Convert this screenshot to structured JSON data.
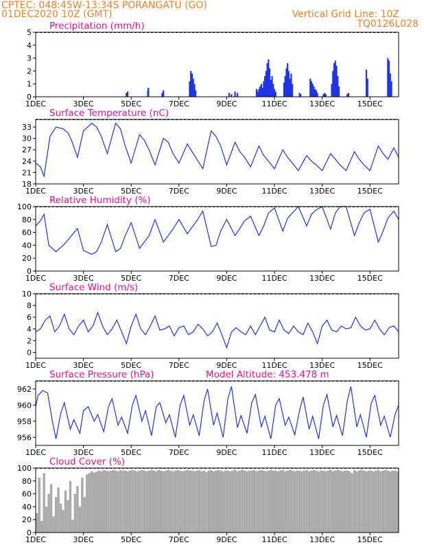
{
  "header": {
    "station": "CPTEC:  048:45W-13:34S  PORANGATU (GO)",
    "run": "01DEC2020 10Z (GMT)",
    "grid_note": "Vertical Grid Line: 10Z",
    "model_code": "TQ0126L028"
  },
  "colors": {
    "header": "#e8822a",
    "title": "#e0148c",
    "line": "#2233dd",
    "bar": "#1f35e6",
    "cloud": "#aaaaaa"
  },
  "chart_data": [
    {
      "type": "bar",
      "title": "Precipitation (mm/h)",
      "ylim": [
        0,
        5
      ],
      "yticks": [
        0,
        1,
        2,
        3,
        4,
        5
      ],
      "xticks": [
        "1DEC",
        "3DEC",
        "5DEC",
        "7DEC",
        "9DEC",
        "11DEC",
        "13DEC",
        "15DEC"
      ],
      "xticks_day": [
        1,
        3,
        5,
        7,
        9,
        11,
        13,
        15
      ],
      "xlim_day": [
        1,
        16.2
      ],
      "x_day": [
        4.8,
        4.85,
        5.7,
        5.72,
        6.3,
        6.35,
        7.45,
        7.5,
        7.55,
        7.6,
        7.65,
        7.7,
        9.1,
        9.2,
        9.35,
        9.45,
        10.25,
        10.3,
        10.35,
        10.4,
        10.45,
        10.5,
        10.55,
        10.6,
        10.65,
        10.7,
        10.75,
        10.8,
        10.85,
        10.9,
        10.95,
        11.0,
        11.05,
        11.4,
        11.45,
        11.5,
        11.55,
        11.6,
        11.65,
        11.7,
        11.75,
        12.05,
        12.1,
        12.5,
        12.55,
        12.6,
        12.65,
        12.7,
        12.75,
        12.8,
        13.05,
        13.1,
        13.15,
        13.4,
        13.45,
        13.5,
        13.55,
        13.6,
        13.65,
        13.7,
        14.05,
        14.1,
        14.85,
        14.9,
        15.75,
        15.8,
        15.85,
        15.9
      ],
      "values": [
        0.3,
        0.4,
        0.5,
        0.7,
        0.3,
        0.5,
        1.2,
        2.0,
        1.8,
        1.4,
        1.0,
        0.5,
        0.3,
        0.2,
        0.4,
        0.3,
        0.6,
        0.4,
        0.6,
        0.8,
        1.0,
        0.7,
        1.2,
        1.6,
        2.0,
        2.6,
        2.9,
        2.2,
        1.3,
        1.6,
        1.0,
        0.6,
        0.4,
        1.1,
        1.6,
        2.2,
        2.6,
        2.0,
        1.4,
        1.8,
        1.0,
        0.3,
        0.2,
        1.4,
        1.2,
        1.0,
        0.8,
        0.6,
        0.5,
        0.3,
        0.2,
        0.3,
        0.2,
        1.0,
        2.0,
        2.6,
        2.8,
        2.4,
        1.6,
        0.8,
        0.2,
        0.3,
        2.1,
        1.4,
        3.0,
        2.8,
        1.8,
        1.2
      ],
      "frame": {
        "x0": 52,
        "x1": 581,
        "y0": 47,
        "y1": 141
      }
    },
    {
      "type": "line",
      "title": "Surface Temperature (nC)",
      "ylim": [
        18,
        35
      ],
      "yticks": [
        18,
        21,
        24,
        27,
        30,
        33
      ],
      "xticks": [
        "1DEC",
        "3DEC",
        "5DEC",
        "7DEC",
        "9DEC",
        "11DEC",
        "13DEC",
        "15DEC"
      ],
      "xticks_day": [
        1,
        3,
        5,
        7,
        9,
        11,
        13,
        15
      ],
      "xlim_day": [
        1,
        16.2
      ],
      "x_day": [
        1.0,
        1.2,
        1.35,
        1.6,
        1.85,
        2.15,
        2.35,
        2.5,
        2.75,
        3.0,
        3.35,
        3.55,
        3.75,
        4.0,
        4.35,
        4.55,
        4.75,
        5.0,
        5.35,
        5.55,
        5.75,
        6.0,
        6.35,
        6.55,
        6.75,
        7.0,
        7.35,
        7.55,
        7.75,
        8.0,
        8.35,
        8.55,
        8.75,
        9.0,
        9.35,
        9.55,
        9.75,
        10.0,
        10.35,
        10.55,
        10.75,
        11.0,
        11.35,
        11.55,
        11.75,
        12.0,
        12.35,
        12.55,
        12.75,
        13.0,
        13.35,
        13.55,
        13.75,
        14.0,
        14.35,
        14.55,
        14.75,
        15.0,
        15.35,
        15.55,
        15.75,
        16.0,
        16.2
      ],
      "values": [
        23.5,
        22.5,
        20,
        30.5,
        33,
        32.5,
        31.5,
        29.5,
        25,
        32,
        34,
        33,
        30.5,
        26,
        34,
        32.5,
        28,
        23.5,
        31,
        29.5,
        27,
        23,
        30,
        29,
        26,
        23.5,
        28.5,
        26.5,
        24.5,
        22,
        32,
        30.5,
        28,
        23,
        29,
        26.5,
        25,
        22.5,
        28,
        25.5,
        24,
        22,
        27,
        25,
        23.5,
        21.5,
        25.5,
        24,
        23,
        21.5,
        26,
        24.5,
        23,
        21.5,
        26.5,
        24.5,
        23,
        21.5,
        28,
        26,
        24.5,
        27.5,
        25
      ],
      "frame": {
        "x0": 52,
        "x1": 581,
        "y0": 174,
        "y1": 268
      }
    },
    {
      "type": "line",
      "title": "Relative Humidity (%)",
      "ylim": [
        0,
        100
      ],
      "yticks": [
        0,
        20,
        40,
        60,
        80,
        100
      ],
      "xticks": [
        "1DEC",
        "3DEC",
        "5DEC",
        "7DEC",
        "9DEC",
        "11DEC",
        "13DEC",
        "15DEC"
      ],
      "xticks_day": [
        1,
        3,
        5,
        7,
        9,
        11,
        13,
        15
      ],
      "xlim_day": [
        1,
        16.2
      ],
      "x_day": [
        1.0,
        1.2,
        1.35,
        1.55,
        1.85,
        2.15,
        2.35,
        2.5,
        2.75,
        3.0,
        3.35,
        3.55,
        3.75,
        4.0,
        4.35,
        4.55,
        4.75,
        5.0,
        5.35,
        5.55,
        5.75,
        6.0,
        6.35,
        6.55,
        6.75,
        7.0,
        7.35,
        7.55,
        7.75,
        8.0,
        8.35,
        8.55,
        8.75,
        9.0,
        9.35,
        9.55,
        9.75,
        10.0,
        10.35,
        10.55,
        10.75,
        11.0,
        11.35,
        11.55,
        11.75,
        12.0,
        12.35,
        12.55,
        12.75,
        13.0,
        13.35,
        13.55,
        13.75,
        14.0,
        14.35,
        14.55,
        14.75,
        15.0,
        15.35,
        15.55,
        15.75,
        16.0,
        16.2
      ],
      "values": [
        70,
        78,
        88,
        40,
        30,
        40,
        48,
        55,
        66,
        32,
        26,
        30,
        45,
        72,
        30,
        35,
        55,
        75,
        35,
        45,
        55,
        80,
        45,
        55,
        65,
        80,
        58,
        68,
        78,
        93,
        38,
        40,
        62,
        80,
        55,
        66,
        78,
        85,
        55,
        70,
        90,
        98,
        62,
        82,
        90,
        100,
        70,
        88,
        95,
        100,
        65,
        90,
        100,
        100,
        55,
        75,
        90,
        96,
        45,
        62,
        82,
        93,
        80
      ],
      "frame": {
        "x0": 52,
        "x1": 581,
        "y0": 301,
        "y1": 395
      }
    },
    {
      "type": "line",
      "title": "Surface Wind (m/s)",
      "ylim": [
        -1,
        10
      ],
      "yticks": [
        0,
        2,
        4,
        6,
        8,
        10
      ],
      "xticks": [
        "1DEC",
        "3DEC",
        "5DEC",
        "7DEC",
        "9DEC",
        "11DEC",
        "13DEC",
        "15DEC"
      ],
      "xticks_day": [
        1,
        3,
        5,
        7,
        9,
        11,
        13,
        15
      ],
      "xlim_day": [
        1,
        16.2
      ],
      "x_day": [
        1.0,
        1.2,
        1.4,
        1.6,
        1.8,
        2.0,
        2.2,
        2.4,
        2.6,
        2.8,
        3.0,
        3.2,
        3.4,
        3.6,
        3.8,
        4.0,
        4.2,
        4.4,
        4.6,
        4.8,
        5.0,
        5.2,
        5.4,
        5.6,
        5.8,
        6.0,
        6.2,
        6.4,
        6.6,
        6.8,
        7.0,
        7.2,
        7.4,
        7.6,
        7.8,
        8.0,
        8.2,
        8.4,
        8.6,
        8.8,
        9.0,
        9.2,
        9.4,
        9.6,
        9.8,
        10.0,
        10.2,
        10.4,
        10.6,
        10.8,
        11.0,
        11.2,
        11.4,
        11.6,
        11.8,
        12.0,
        12.2,
        12.4,
        12.6,
        12.8,
        13.0,
        13.2,
        13.4,
        13.6,
        13.8,
        14.0,
        14.2,
        14.4,
        14.6,
        14.8,
        15.0,
        15.2,
        15.4,
        15.6,
        15.8,
        16.0,
        16.2
      ],
      "values": [
        3.5,
        4.0,
        5.5,
        6.2,
        3.5,
        4.5,
        6.5,
        4.0,
        3.0,
        4.5,
        5.5,
        3.5,
        4.5,
        6.8,
        4.5,
        3.0,
        4.0,
        5.5,
        3.5,
        1.5,
        4.5,
        6.5,
        4.0,
        3.0,
        4.5,
        6.2,
        3.8,
        4.0,
        4.5,
        2.8,
        4.2,
        4.5,
        3.0,
        3.5,
        4.8,
        4.0,
        2.8,
        3.5,
        5.0,
        3.0,
        0.8,
        3.5,
        4.2,
        3.5,
        3.0,
        4.5,
        3.0,
        4.5,
        6.0,
        3.8,
        3.5,
        5.5,
        3.8,
        3.2,
        4.5,
        3.5,
        3.0,
        5.0,
        3.5,
        1.5,
        4.5,
        5.5,
        3.8,
        3.5,
        4.5,
        4.0,
        4.2,
        6.0,
        4.5,
        3.8,
        4.0,
        5.5,
        4.0,
        3.0,
        4.2,
        4.5,
        3.5
      ],
      "frame": {
        "x0": 52,
        "x1": 581,
        "y0": 428,
        "y1": 522
      }
    },
    {
      "type": "line",
      "title": "Surface Pressure (hPa)",
      "annotation": "Model Altitude: 453.478  m",
      "ylim": [
        955,
        963
      ],
      "yticks": [
        956,
        958,
        960,
        962
      ],
      "xticks": [
        "1DEC",
        "3DEC",
        "5DEC",
        "7DEC",
        "9DEC",
        "11DEC",
        "13DEC",
        "15DEC"
      ],
      "xticks_day": [
        1,
        3,
        5,
        7,
        9,
        11,
        13,
        15
      ],
      "xlim_day": [
        1,
        16.2
      ],
      "x_day": [
        1.0,
        1.1,
        1.3,
        1.5,
        1.7,
        1.85,
        2.05,
        2.2,
        2.45,
        2.6,
        2.85,
        3.0,
        3.2,
        3.45,
        3.6,
        3.85,
        4.05,
        4.2,
        4.45,
        4.6,
        4.85,
        5.05,
        5.2,
        5.45,
        5.6,
        5.85,
        6.05,
        6.2,
        6.45,
        6.6,
        6.85,
        7.05,
        7.2,
        7.45,
        7.6,
        7.85,
        8.05,
        8.2,
        8.45,
        8.6,
        8.85,
        9.05,
        9.2,
        9.45,
        9.6,
        9.85,
        10.05,
        10.2,
        10.45,
        10.6,
        10.85,
        11.05,
        11.2,
        11.45,
        11.6,
        11.85,
        12.05,
        12.2,
        12.45,
        12.6,
        12.85,
        13.05,
        13.2,
        13.45,
        13.6,
        13.85,
        14.05,
        14.2,
        14.45,
        14.6,
        14.85,
        15.05,
        15.2,
        15.45,
        15.6,
        15.85,
        16.05,
        16.2
      ],
      "values": [
        959.8,
        961.2,
        961.8,
        961.5,
        958,
        955.8,
        959,
        960.3,
        957,
        958.2,
        956.5,
        959.3,
        959.8,
        958,
        958.8,
        956.7,
        959.8,
        960.8,
        957.5,
        958.5,
        956.5,
        960,
        961.2,
        958,
        959.3,
        956.2,
        959.8,
        960.3,
        957.8,
        958.8,
        956,
        960,
        961.2,
        957.5,
        958.8,
        956.2,
        960.5,
        962,
        957.5,
        959,
        956,
        960.8,
        962.3,
        957.2,
        958.7,
        956.5,
        960.3,
        961.3,
        957.3,
        958.6,
        955.8,
        960,
        960.8,
        957.5,
        958.5,
        956.3,
        959.3,
        961,
        957,
        958.6,
        955.8,
        960,
        961.3,
        957.3,
        958.7,
        956.2,
        960.5,
        962.3,
        957.3,
        958.8,
        956,
        960.2,
        961.2,
        957.5,
        958.6,
        956,
        958.8,
        960
      ],
      "frame": {
        "x0": 52,
        "x1": 581,
        "y0": 555,
        "y1": 649
      }
    },
    {
      "type": "bar",
      "title": "Cloud Cover (%)",
      "ylim": [
        0,
        100
      ],
      "yticks": [
        0,
        20,
        40,
        60,
        80,
        100
      ],
      "xticks": [
        "1DEC",
        "3DEC",
        "5DEC",
        "7DEC",
        "9DEC",
        "11DEC",
        "13DEC",
        "15DEC"
      ],
      "xticks_day": [
        1,
        3,
        5,
        7,
        9,
        11,
        13,
        15
      ],
      "xlim_day": [
        1,
        16.2
      ],
      "x_day": [
        1.0,
        1.1,
        1.2,
        1.3,
        1.4,
        1.5,
        1.6,
        1.7,
        1.8,
        1.9,
        2.0,
        2.1,
        2.2,
        2.3,
        2.4,
        2.5,
        2.6,
        2.7,
        2.8,
        2.9,
        3.0,
        3.1,
        3.2,
        3.3,
        3.4,
        3.5,
        3.6,
        3.7,
        3.8,
        3.9,
        4.0,
        4.1,
        4.2,
        4.3,
        4.4,
        4.5,
        4.6,
        4.7,
        4.8,
        4.9,
        5.0,
        5.1,
        5.2,
        5.3,
        5.4,
        5.5,
        5.6,
        5.7,
        5.8,
        5.9,
        6.0,
        6.1,
        6.2,
        6.3,
        6.4,
        6.5,
        6.6,
        6.7,
        6.8,
        6.9,
        7.0,
        7.1,
        7.2,
        7.3,
        7.4,
        7.5,
        7.6,
        7.7,
        7.8,
        7.9,
        8.0,
        8.1,
        8.2,
        8.3,
        8.4,
        8.5,
        8.6,
        8.7,
        8.8,
        8.9,
        9.0,
        9.1,
        9.2,
        9.3,
        9.4,
        9.5,
        9.6,
        9.7,
        9.8,
        9.9,
        10.0,
        10.1,
        10.2,
        10.3,
        10.4,
        10.5,
        10.6,
        10.7,
        10.8,
        10.9,
        11.0,
        11.1,
        11.2,
        11.3,
        11.4,
        11.5,
        11.6,
        11.7,
        11.8,
        11.9,
        12.0,
        12.1,
        12.2,
        12.3,
        12.4,
        12.5,
        12.6,
        12.7,
        12.8,
        12.9,
        13.0,
        13.1,
        13.2,
        13.3,
        13.4,
        13.5,
        13.6,
        13.7,
        13.8,
        13.9,
        14.0,
        14.1,
        14.2,
        14.3,
        14.4,
        14.5,
        14.6,
        14.7,
        14.8,
        14.9,
        15.0,
        15.1,
        15.2,
        15.3,
        15.4,
        15.5,
        15.6,
        15.7,
        15.8,
        15.9,
        16.0,
        16.1
      ],
      "values": [
        30,
        85,
        18,
        92,
        40,
        60,
        75,
        25,
        55,
        70,
        45,
        35,
        65,
        50,
        80,
        20,
        60,
        72,
        40,
        85,
        55,
        90,
        92,
        95,
        93,
        94,
        96,
        95,
        97,
        96,
        95,
        96,
        97,
        96,
        95,
        97,
        96,
        96,
        95,
        96,
        97,
        96,
        95,
        96,
        97,
        96,
        95,
        96,
        97,
        96,
        95,
        97,
        96,
        95,
        96,
        97,
        96,
        95,
        96,
        97,
        96,
        95,
        96,
        97,
        96,
        96,
        95,
        96,
        97,
        95,
        96,
        94,
        96,
        97,
        95,
        96,
        97,
        96,
        95,
        96,
        96,
        95,
        96,
        97,
        95,
        96,
        97,
        96,
        95,
        96,
        96,
        97,
        95,
        96,
        97,
        96,
        95,
        96,
        97,
        96,
        96,
        95,
        96,
        97,
        95,
        96,
        97,
        96,
        95,
        96,
        96,
        95,
        96,
        97,
        95,
        96,
        97,
        96,
        95,
        96,
        96,
        95,
        96,
        97,
        95,
        96,
        97,
        96,
        95,
        96,
        96,
        95,
        92,
        97,
        95,
        96,
        97,
        96,
        95,
        96,
        96,
        95,
        96,
        97,
        95,
        96,
        97,
        96,
        95,
        96,
        96,
        95
      ],
      "frame": {
        "x0": 52,
        "x1": 581,
        "y0": 682,
        "y1": 776
      }
    }
  ]
}
